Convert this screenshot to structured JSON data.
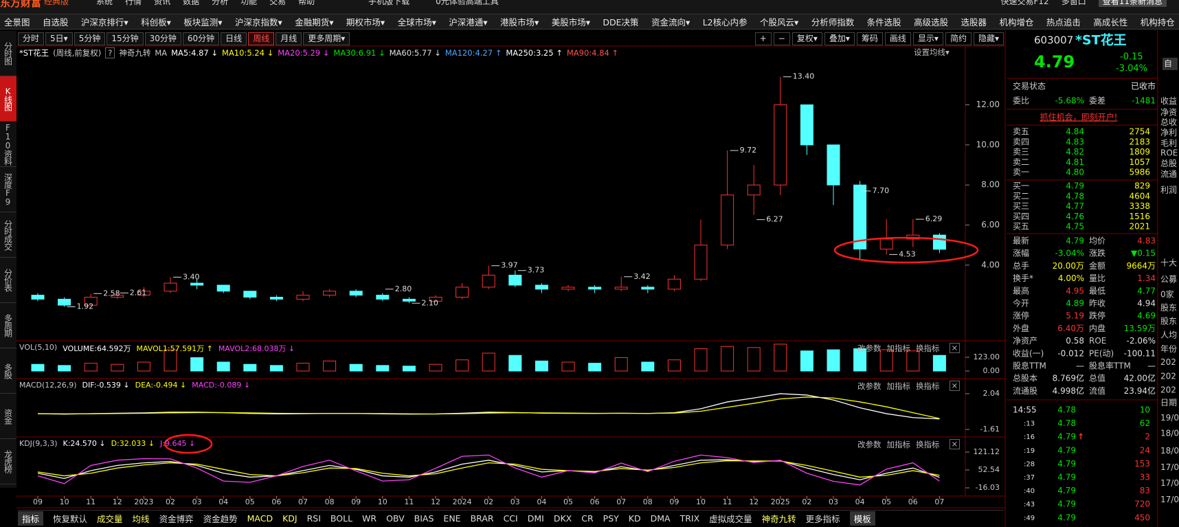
{
  "title_bar": {
    "brand": "东方财富",
    "edition": "经典版",
    "menus": [
      "系统",
      "行情",
      "资讯",
      "数据",
      "分析",
      "功能",
      "交易",
      "帮助"
    ],
    "mobile": "手机版下载",
    "promo": "0元体验高端工具",
    "quick_trade": "快速交易F12",
    "multi_window": "多窗口",
    "messages": "查看11条新消息"
  },
  "menu": [
    "全景图",
    "自选股",
    "沪深京排行▾",
    "科创板▾",
    "板块监测▾",
    "沪深京指数▾",
    "金融期货▾",
    "期权市场▾",
    "全球市场▾",
    "沪深港通▾",
    "港股市场▾",
    "美股市场▾",
    "DDE决策",
    "资金流向▾",
    "L2核心内参",
    "个股风云▾",
    "分析师指数",
    "条件选股",
    "高级选股",
    "选股器",
    "机构增仓",
    "热点追击",
    "高成长性",
    "机构持仓"
  ],
  "left_nav": {
    "items": [
      "分时图",
      "K线图",
      "F10资料",
      "深度F9",
      "分时成交",
      "分价表",
      "多周期",
      "多股",
      "资金",
      "龙虎榜"
    ],
    "active": 1
  },
  "period_tabs": {
    "items": [
      "分时",
      "5日▾",
      "5分钟",
      "15分钟",
      "30分钟",
      "60分钟",
      "日线",
      "周线",
      "月线",
      "更多周期▾"
    ],
    "active": 7
  },
  "toolbar": [
    "+",
    "−",
    "复权▾",
    "叠加▾",
    "筹码",
    "画线",
    "显示▾",
    "简约",
    "隐藏▾"
  ],
  "legend": {
    "name": "*ST花王",
    "period": "(周线,前复权)",
    "help": "?",
    "nine": "神奇九转",
    "ma": "MA",
    "items": [
      {
        "label": "MA5:4.87 ↓",
        "color": "#ffffff"
      },
      {
        "label": "MA10:5.24 ↓",
        "color": "#ffff00"
      },
      {
        "label": "MA20:5.29 ↓",
        "color": "#ff40ff"
      },
      {
        "label": "MA30:6.91 ↓",
        "color": "#00e600"
      },
      {
        "label": "MA60:5.77 ↓",
        "color": "#e0e0e0"
      },
      {
        "label": "MA120:4.27 ↑",
        "color": "#4aa8ff"
      },
      {
        "label": "MA250:3.25 ↑",
        "color": "#ffffff"
      },
      {
        "label": "MA90:4.84 ↑",
        "color": "#ff5050"
      }
    ],
    "settings": "设置均线▾"
  },
  "price_chart": {
    "months": [
      "09",
      "10",
      "11",
      "12",
      "2023",
      "02",
      "03",
      "04",
      "05",
      "06",
      "07",
      "08",
      "09",
      "10",
      "11",
      "12",
      "2024",
      "02",
      "03",
      "04",
      "05",
      "06",
      "07",
      "08",
      "09",
      "10",
      "11",
      "12",
      "2025",
      "02",
      "03",
      "04",
      "05",
      "06",
      "07"
    ],
    "open": [
      2.5,
      2.3,
      2.0,
      2.4,
      2.5,
      2.7,
      3.1,
      3.0,
      2.7,
      2.4,
      2.3,
      2.5,
      2.7,
      2.5,
      2.3,
      2.2,
      2.4,
      2.9,
      3.5,
      3.0,
      2.8,
      2.9,
      2.8,
      2.9,
      2.8,
      3.3,
      5.0,
      7.5,
      8.0,
      12.0,
      10.0,
      8.0,
      4.8,
      5.3,
      5.5
    ],
    "high": [
      2.6,
      2.4,
      2.58,
      2.61,
      2.9,
      3.4,
      3.3,
      3.0,
      2.7,
      2.5,
      2.7,
      2.8,
      2.8,
      2.6,
      2.4,
      2.5,
      3.1,
      3.97,
      3.73,
      3.1,
      3.0,
      3.0,
      3.42,
      3.0,
      3.5,
      6.27,
      9.72,
      9.0,
      13.4,
      12.0,
      10.0,
      8.2,
      6.29,
      6.29,
      5.6
    ],
    "low": [
      2.2,
      1.92,
      1.95,
      2.3,
      2.4,
      2.6,
      2.8,
      2.6,
      2.3,
      2.2,
      2.2,
      2.4,
      2.4,
      2.2,
      2.1,
      2.15,
      2.3,
      2.8,
      2.9,
      2.6,
      2.7,
      2.6,
      2.7,
      2.6,
      2.7,
      3.2,
      4.8,
      6.5,
      7.5,
      9.5,
      7.0,
      4.3,
      4.53,
      4.9,
      4.6
    ],
    "close": [
      2.3,
      2.0,
      2.4,
      2.5,
      2.7,
      3.1,
      3.0,
      2.7,
      2.4,
      2.3,
      2.5,
      2.7,
      2.5,
      2.3,
      2.2,
      2.4,
      2.9,
      3.5,
      3.0,
      2.8,
      2.9,
      2.8,
      2.9,
      2.8,
      3.3,
      5.0,
      7.5,
      8.0,
      12.0,
      10.0,
      8.0,
      4.8,
      5.3,
      5.5,
      4.79
    ],
    "ylim": [
      0.36,
      14.9
    ],
    "yticks": [
      {
        "value": 4,
        "label": "4.00"
      },
      {
        "value": 6,
        "label": "6.00"
      },
      {
        "value": 8,
        "label": "8.00"
      },
      {
        "value": 10,
        "label": "10.00"
      },
      {
        "value": 12,
        "label": "12.00"
      }
    ],
    "up_color": "#ff3232",
    "down_color": "#54ffff",
    "annotations": [
      {
        "value": 13.4,
        "label": "13.40"
      },
      {
        "value": 9.72,
        "label": "9.72"
      },
      {
        "value": 6.27,
        "label": "6.27"
      },
      {
        "value": 3.4,
        "label": "3.40"
      },
      {
        "value": 2.58,
        "label": "2.58"
      },
      {
        "value": 2.61,
        "label": "2.61"
      },
      {
        "value": 1.92,
        "label": "1.92"
      },
      {
        "value": 3.97,
        "label": "3.97"
      },
      {
        "value": 3.73,
        "label": "3.73"
      },
      {
        "value": 3.42,
        "label": "3.42"
      },
      {
        "value": 2.8,
        "label": "2.80"
      },
      {
        "value": 2.1,
        "label": "2.10"
      },
      {
        "value": 7.7,
        "label": "7.70"
      },
      {
        "value": 6.29,
        "label": "6.29"
      },
      {
        "value": 4.53,
        "label": "4.53"
      }
    ]
  },
  "volume": {
    "legend": [
      "VOL(5,10)",
      "VOLUME:64.592万",
      "MAVOL1:57.591万 ↑",
      "MAVOL2:68.038万 ↓"
    ],
    "legend_colors": [
      "#c8c8c8",
      "#ffffff",
      "#ffff00",
      "#ff40ff"
    ],
    "values": [
      60,
      50,
      70,
      60,
      80,
      190,
      120,
      80,
      60,
      50,
      70,
      90,
      60,
      50,
      44,
      60,
      100,
      160,
      140,
      90,
      80,
      70,
      120,
      80,
      100,
      200,
      220,
      210,
      240,
      180,
      190,
      200,
      190,
      180,
      140
    ],
    "ylim": [
      0,
      258
    ],
    "yticks": [
      {
        "value": 123,
        "label": "123.00"
      },
      {
        "value": 0,
        "label": "0.00"
      }
    ]
  },
  "macd": {
    "legend": [
      "MACD(12,26,9)",
      "DIF:-0.539 ↓",
      "DEA:-0.494 ↓",
      "MACD:-0.089 ↓"
    ],
    "legend_colors": [
      "#c8c8c8",
      "#ffffff",
      "#ffff00",
      "#ff40ff"
    ],
    "dif": [
      0,
      -0.05,
      0,
      0.05,
      0.08,
      0.15,
      0.15,
      0.1,
      0.02,
      -0.02,
      0,
      0.03,
      0.02,
      -0.02,
      -0.05,
      -0.03,
      0.05,
      0.15,
      0.12,
      0.05,
      0.03,
      0.02,
      0.05,
      0.02,
      0.1,
      0.5,
      1.2,
      1.6,
      2.04,
      1.9,
      1.4,
      0.6,
      0.0,
      -0.4,
      -0.539
    ],
    "dea": [
      0,
      -0.02,
      -0.01,
      0.01,
      0.04,
      0.08,
      0.11,
      0.11,
      0.08,
      0.04,
      0.02,
      0.02,
      0.02,
      0.01,
      -0.02,
      -0.03,
      0,
      0.06,
      0.09,
      0.08,
      0.06,
      0.04,
      0.04,
      0.03,
      0.06,
      0.25,
      0.65,
      1.05,
      1.5,
      1.7,
      1.6,
      1.2,
      0.7,
      0.1,
      -0.494
    ],
    "ylim": [
      -1.96,
      3.44
    ],
    "yticks": [
      2.04,
      -1.61
    ]
  },
  "kdj": {
    "legend": [
      "KDJ(9,3,3)",
      "K:24.570 ↓",
      "D:32.033 ↓",
      "J:9.645 ↓"
    ],
    "legend_colors": [
      "#c8c8c8",
      "#ffffff",
      "#ffff00",
      "#ff40ff"
    ],
    "k": [
      40,
      20,
      50,
      70,
      80,
      85,
      70,
      40,
      25,
      30,
      50,
      70,
      55,
      30,
      25,
      45,
      75,
      90,
      70,
      45,
      50,
      45,
      65,
      50,
      70,
      90,
      92,
      85,
      88,
      60,
      35,
      15,
      40,
      60,
      24.57
    ],
    "d": [
      45,
      30,
      40,
      60,
      72,
      80,
      75,
      55,
      35,
      30,
      42,
      60,
      58,
      40,
      30,
      38,
      60,
      80,
      75,
      55,
      50,
      47,
      58,
      52,
      62,
      80,
      88,
      87,
      87,
      70,
      48,
      25,
      32,
      50,
      32.03
    ],
    "j": [
      30,
      0,
      70,
      90,
      96,
      95,
      60,
      10,
      5,
      30,
      66,
      90,
      49,
      10,
      15,
      59,
      105,
      110,
      60,
      25,
      50,
      41,
      79,
      46,
      86,
      110,
      100,
      81,
      90,
      40,
      9,
      -5,
      56,
      80,
      9.65
    ],
    "ylim": [
      -47.7,
      173.9
    ],
    "yticks": [
      121.12,
      52.54,
      -16.03
    ]
  },
  "panel_buttons": [
    "改参数",
    "加指标",
    "换指标",
    "×"
  ],
  "quote": {
    "code": "603007",
    "name": "*ST花王",
    "price": "4.79",
    "change": "-0.15",
    "pct": "-3.04%",
    "self": "自",
    "status_label": "交易状态",
    "status": "已收市",
    "ratio_label": "委比",
    "ratio": "-5.68%",
    "diff_label": "委差",
    "diff": "-1481",
    "cta": "抓住机会，即刻开户!",
    "asks": [
      [
        "卖五",
        "4.84",
        "2754"
      ],
      [
        "卖四",
        "4.83",
        "2183"
      ],
      [
        "卖三",
        "4.82",
        "1809"
      ],
      [
        "卖二",
        "4.81",
        "1057"
      ],
      [
        "卖一",
        "4.80",
        "5986"
      ]
    ],
    "bids": [
      [
        "买一",
        "4.79",
        "829"
      ],
      [
        "买二",
        "4.78",
        "4604"
      ],
      [
        "买三",
        "4.77",
        "3338"
      ],
      [
        "买四",
        "4.76",
        "1516"
      ],
      [
        "买五",
        "4.75",
        "2021"
      ]
    ],
    "stats": [
      {
        "l1": "最新",
        "v1": "4.79",
        "c1": "#00e600",
        "l2": "均价",
        "v2": "4.83",
        "c2": "#ff3333"
      },
      {
        "l1": "涨幅",
        "v1": "-3.04%",
        "c1": "#00e600",
        "l2": "涨跌",
        "v2": "▼0.15",
        "c2": "#00e600"
      },
      {
        "l1": "总手",
        "v1": "20.00万",
        "c1": "#ffff00",
        "l2": "金额",
        "v2": "9664万",
        "c2": "#ffff00"
      },
      {
        "l1": "换手*",
        "v1": "4.00%",
        "c1": "#ffff00",
        "l2": "量比",
        "v2": "1.34",
        "c2": "#ff3333"
      },
      {
        "l1": "最高",
        "v1": "4.95",
        "c1": "#ff3333",
        "l2": "最低",
        "v2": "4.77",
        "c2": "#00e600"
      },
      {
        "l1": "今开",
        "v1": "4.89",
        "c1": "#00e600",
        "l2": "昨收",
        "v2": "4.94",
        "c2": "#e0e0e0"
      },
      {
        "l1": "涨停",
        "v1": "5.19",
        "c1": "#ff3333",
        "l2": "跌停",
        "v2": "4.69",
        "c2": "#00e600"
      },
      {
        "l1": "外盘",
        "v1": "6.40万",
        "c1": "#ff3333",
        "l2": "内盘",
        "v2": "13.59万",
        "c2": "#00e600"
      },
      {
        "l1": "净资产",
        "v1": "0.58",
        "c1": "#e0e0e0",
        "l2": "ROE",
        "v2": "-2.06%",
        "c2": "#e0e0e0"
      },
      {
        "l1": "收益(一)",
        "v1": "-0.012",
        "c1": "#e0e0e0",
        "l2": "PE(动)",
        "v2": "-100.11",
        "c2": "#e0e0e0"
      },
      {
        "l1": "股息TTM",
        "v1": "—",
        "c1": "#e0e0e0",
        "l2": "股息率TTM",
        "v2": "—",
        "c2": "#e0e0e0"
      },
      {
        "l1": "总股本",
        "v1": "8.769亿",
        "c1": "#e0e0e0",
        "l2": "总值",
        "v2": "42.00亿",
        "c2": "#e0e0e0"
      },
      {
        "l1": "流通股",
        "v1": "4.998亿",
        "c1": "#e0e0e0",
        "l2": "流值",
        "v2": "23.94亿",
        "c2": "#e0e0e0"
      }
    ],
    "ticks": [
      {
        "t": "14:55",
        "p": "4.78",
        "v": "10",
        "c": "#00e600"
      },
      {
        "t": ":13",
        "p": "4.78",
        "v": "62",
        "c": "#00e600"
      },
      {
        "t": ":16",
        "p": "4.79",
        "up": "↑",
        "v": "2",
        "c": "#ff3333"
      },
      {
        "t": ":19",
        "p": "4.79",
        "v": "24",
        "c": "#ff3333"
      },
      {
        "t": ":28",
        "p": "4.79",
        "v": "153",
        "c": "#ff3333"
      },
      {
        "t": ":37",
        "p": "4.79",
        "v": "33",
        "c": "#ff3333"
      },
      {
        "t": ":40",
        "p": "4.79",
        "v": "83",
        "c": "#ff3333"
      },
      {
        "t": ":43",
        "p": "4.79",
        "v": "720",
        "c": "#ff3333"
      },
      {
        "t": ":49",
        "p": "4.79",
        "v": "450",
        "c": "#ff3333"
      }
    ]
  },
  "side": [
    "收益",
    "净资",
    "总收",
    "净利",
    "毛利",
    "ROE",
    "总股",
    "流通",
    "利润",
    "十大",
    "公募",
    "0家",
    "股东",
    "股东",
    "人均",
    "年份",
    "202",
    "202",
    "202",
    "日期",
    "19/0",
    "18/0",
    "18/0",
    "17/0",
    "17/0",
    "17/0"
  ],
  "bottom_tabs": {
    "items": [
      "指标",
      "恢复默认",
      "成交量",
      "均线",
      "资金博弈",
      "资金趋势",
      "MACD",
      "KDJ",
      "RSI",
      "BOLL",
      "WR",
      "OBV",
      "BIAS",
      "ENE",
      "BRAR",
      "CCI",
      "DMI",
      "DKX",
      "CR",
      "PSY",
      "KD",
      "DMA",
      "TRIX",
      "虚拟成交量",
      "神奇九转",
      "更多指标",
      "模板"
    ],
    "highlighted": [
      2,
      3,
      6,
      7,
      24
    ],
    "boxed": [
      0,
      26
    ]
  }
}
